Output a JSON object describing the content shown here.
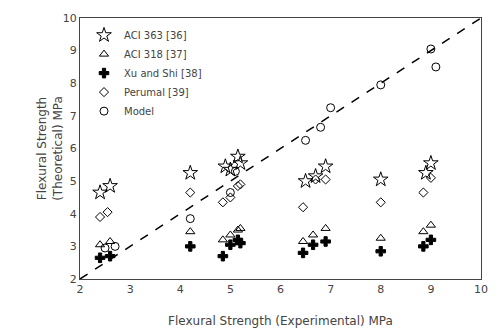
{
  "chart_data": {
    "type": "scatter",
    "x_label": "Flexural Strength (Experimental) MPa",
    "y_label": "Flexural Strength\n(Theoretical) MPa",
    "xlim": [
      2,
      10
    ],
    "ylim": [
      2,
      10
    ],
    "xticks": [
      2,
      3,
      4,
      5,
      6,
      7,
      8,
      9,
      10
    ],
    "yticks": [
      2,
      3,
      4,
      5,
      6,
      7,
      8,
      9,
      10
    ],
    "grid": false,
    "legend": "upper left",
    "series": [
      {
        "type": "line",
        "line_style": "dashed",
        "color": "black",
        "x": [
          2,
          10
        ],
        "y": [
          2,
          10
        ]
      },
      {
        "name": "ACI 363 [36]",
        "marker": "star-open",
        "color": "black",
        "x": [
          2.4,
          2.6,
          4.2,
          4.9,
          5.0,
          5.15,
          5.2,
          6.5,
          6.7,
          6.9,
          8.0,
          8.9,
          9.0
        ],
        "y": [
          4.65,
          4.85,
          5.25,
          5.45,
          5.35,
          5.75,
          5.55,
          5.0,
          5.15,
          5.45,
          5.05,
          5.25,
          5.55
        ]
      },
      {
        "name": "ACI 318 [37]",
        "marker": "triangle-up-open",
        "color": "black",
        "x": [
          2.4,
          2.6,
          4.2,
          4.85,
          5.0,
          5.15,
          5.2,
          6.45,
          6.65,
          6.9,
          8.0,
          8.85,
          9.0
        ],
        "y": [
          3.05,
          3.15,
          3.45,
          3.2,
          3.35,
          3.5,
          3.55,
          3.15,
          3.35,
          3.55,
          3.25,
          3.45,
          3.65
        ]
      },
      {
        "name": "Xu and Shi [38]",
        "marker": "cross",
        "color": "black",
        "x": [
          2.4,
          2.6,
          4.2,
          4.85,
          5.0,
          5.15,
          5.2,
          6.45,
          6.65,
          6.9,
          8.0,
          8.85,
          9.0
        ],
        "y": [
          2.65,
          2.7,
          3.0,
          2.7,
          3.05,
          3.2,
          3.1,
          2.8,
          3.05,
          3.15,
          2.85,
          3.0,
          3.2
        ]
      },
      {
        "name": "Perumal [39]",
        "marker": "diamond-open",
        "color": "black",
        "x": [
          2.4,
          2.55,
          4.2,
          4.85,
          5.0,
          5.15,
          5.2,
          6.45,
          6.7,
          6.9,
          8.0,
          8.85,
          9.0
        ],
        "y": [
          3.9,
          4.05,
          4.65,
          4.35,
          4.5,
          4.85,
          4.9,
          4.2,
          5.05,
          5.05,
          4.35,
          4.65,
          5.1
        ]
      },
      {
        "name": "Model",
        "marker": "circle-open",
        "color": "black",
        "x": [
          2.5,
          2.7,
          4.2,
          5.0,
          5.1,
          6.5,
          6.8,
          7.0,
          8.0,
          9.0,
          9.1
        ],
        "y": [
          2.95,
          3.0,
          3.85,
          4.65,
          5.3,
          6.25,
          6.65,
          7.25,
          7.95,
          9.05,
          8.5
        ]
      }
    ]
  }
}
